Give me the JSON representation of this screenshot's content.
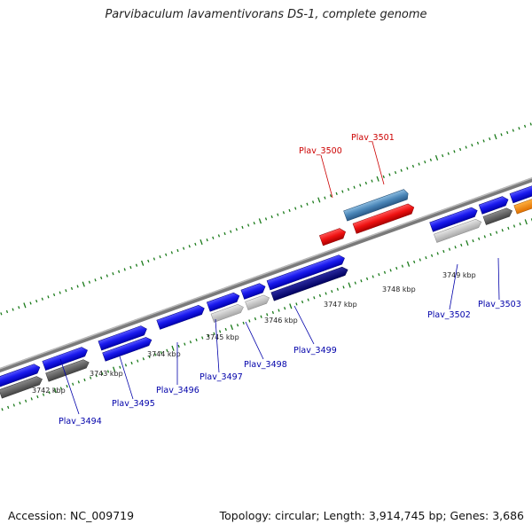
{
  "title": "Parvibaculum lavamentivorans DS-1, complete genome",
  "footer": {
    "accession": "Accession: NC_009719",
    "summary": "Topology: circular; Length: 3,914,745 bp; Genes: 3,686"
  },
  "colors": {
    "backbone": "#777777",
    "tick": "#1a7a1a",
    "forward_label": "#cc0000",
    "reverse_label": "#0000aa",
    "gene_blue": "#1a1aee",
    "gene_navy": "#000080",
    "gene_red": "#ee1111",
    "gene_steel": "#4a86b8",
    "gene_grey": "#bdbdbd",
    "gene_dark": "#666666",
    "gene_orange": "#ff8c00"
  },
  "scale": {
    "ticks": [
      "3742 kbp",
      "3743 kbp",
      "3744 kbp",
      "3745 kbp",
      "3746 kbp",
      "3747 kbp",
      "3748 kbp",
      "3749 kbp"
    ]
  },
  "genes": [
    {
      "label": "Plav_3494",
      "strand": "reverse"
    },
    {
      "label": "Plav_3495",
      "strand": "reverse"
    },
    {
      "label": "Plav_3496",
      "strand": "reverse"
    },
    {
      "label": "Plav_3497",
      "strand": "reverse"
    },
    {
      "label": "Plav_3498",
      "strand": "reverse"
    },
    {
      "label": "Plav_3499",
      "strand": "reverse"
    },
    {
      "label": "Plav_3500",
      "strand": "forward"
    },
    {
      "label": "Plav_3501",
      "strand": "forward"
    },
    {
      "label": "Plav_3502",
      "strand": "reverse"
    },
    {
      "label": "Plav_3503",
      "strand": "reverse"
    }
  ]
}
